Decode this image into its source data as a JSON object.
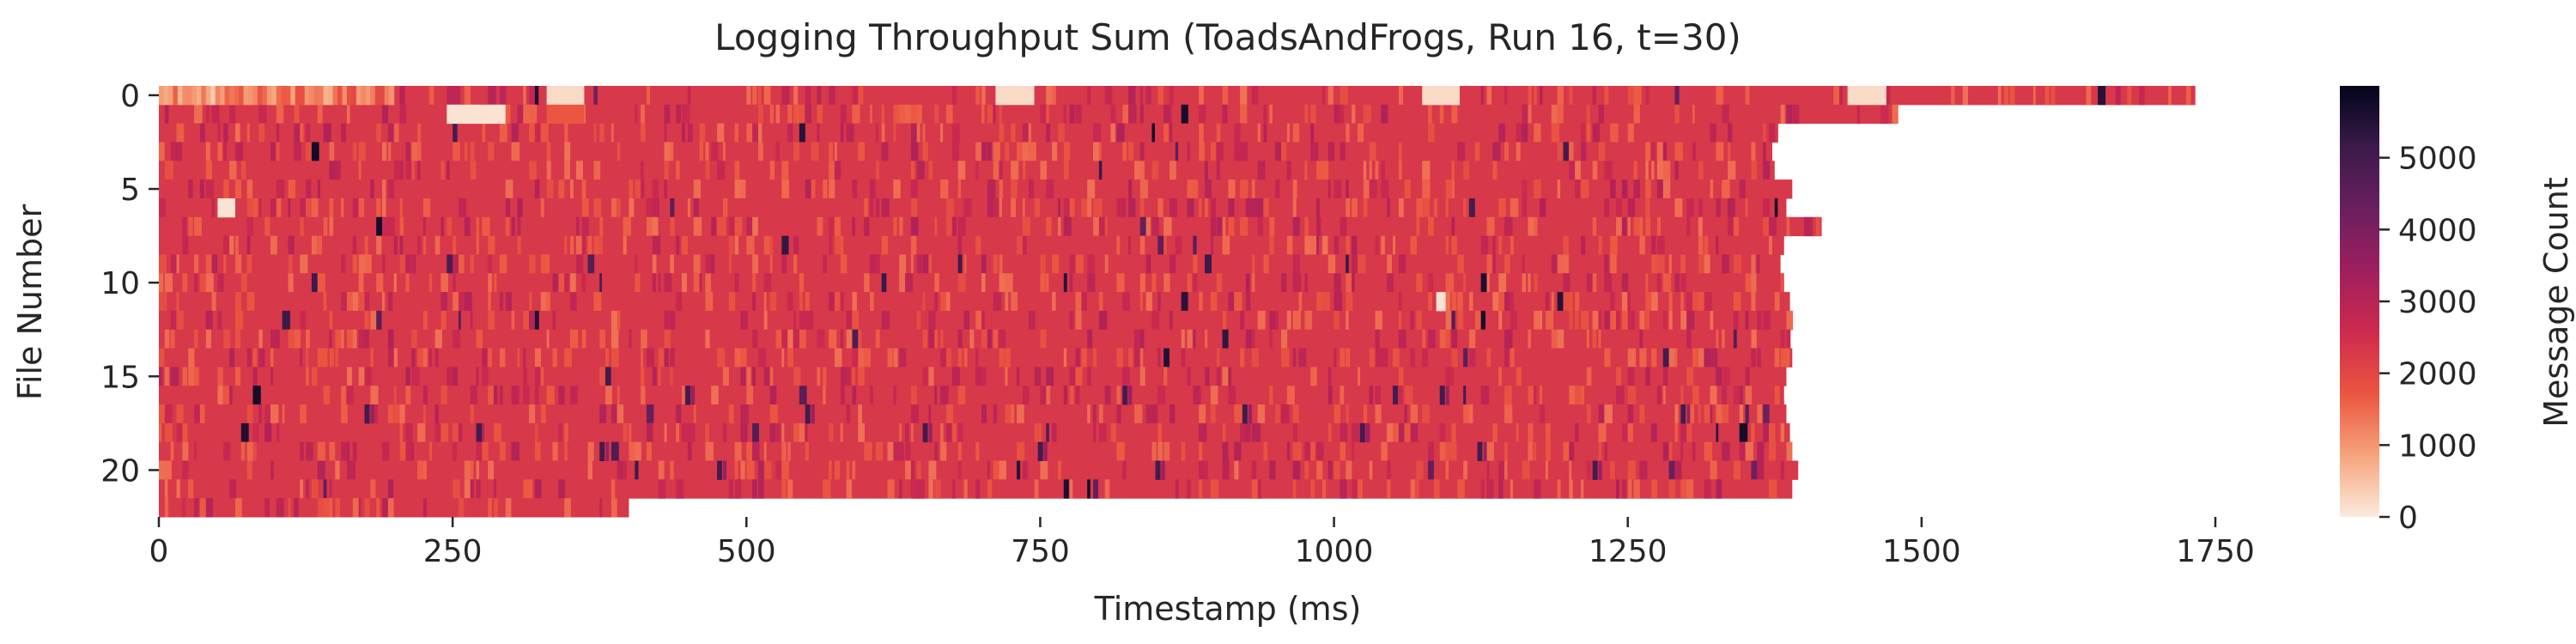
{
  "chart_data": {
    "type": "heatmap",
    "title": "Logging Throughput Sum (ToadsAndFrogs, Run 16, t=30)",
    "xlabel": "Timestamp (ms)",
    "ylabel": "File Number",
    "colorbar_label": "Message Count",
    "xlim": [
      0,
      1750
    ],
    "ylim": [
      0,
      22
    ],
    "x_ticks": [
      0,
      250,
      500,
      750,
      1000,
      1250,
      1500,
      1750
    ],
    "x_tick_labels": [
      "0",
      "250",
      "500",
      "750",
      "1000",
      "1250",
      "1500",
      "1750"
    ],
    "y_ticks": [
      0,
      5,
      10,
      15,
      20
    ],
    "y_tick_labels": [
      "0",
      "5",
      "10",
      "15",
      "20"
    ],
    "colorbar_range": [
      0,
      6000
    ],
    "colorbar_ticks": [
      0,
      1000,
      2000,
      3000,
      4000,
      5000
    ],
    "colorbar_tick_labels": [
      "0",
      "1000",
      "2000",
      "3000",
      "4000",
      "5000"
    ],
    "colorscale": [
      "#faebdd",
      "#f6a47b",
      "#eb5540",
      "#ce2a4e",
      "#9e1f5e",
      "#6b1f5e",
      "#3b1a4a",
      "#03051a"
    ],
    "typical_value": 2300,
    "row_end_ms": [
      1733,
      1478,
      1378,
      1373,
      1375,
      1390,
      1385,
      1415,
      1383,
      1380,
      1383,
      1388,
      1390,
      1388,
      1390,
      1385,
      1383,
      1385,
      1388,
      1390,
      1395,
      1390,
      400
    ],
    "low_patches": [
      {
        "row": 0,
        "start": 0,
        "end": 200,
        "value": 1000
      },
      {
        "row": 0,
        "start": 330,
        "end": 362,
        "value": 200
      },
      {
        "row": 0,
        "start": 712,
        "end": 745,
        "value": 200
      },
      {
        "row": 0,
        "start": 1075,
        "end": 1107,
        "value": 200
      },
      {
        "row": 0,
        "start": 1437,
        "end": 1470,
        "value": 200
      },
      {
        "row": 1,
        "start": 245,
        "end": 295,
        "value": 100
      },
      {
        "row": 1,
        "start": 330,
        "end": 362,
        "value": 1700
      },
      {
        "row": 6,
        "start": 50,
        "end": 65,
        "value": 100
      },
      {
        "row": 11,
        "start": 1087,
        "end": 1095,
        "value": 100
      }
    ],
    "high_spikes": [
      {
        "row": 16,
        "x": 448,
        "value": 5000
      },
      {
        "row": 16,
        "x": 820,
        "value": 5000
      },
      {
        "row": 16,
        "x": 1090,
        "value": 5000
      },
      {
        "row": 17,
        "x": 175,
        "value": 5000
      },
      {
        "row": 17,
        "x": 550,
        "value": 5000
      },
      {
        "row": 17,
        "x": 922,
        "value": 5000
      },
      {
        "row": 17,
        "x": 1295,
        "value": 5000
      },
      {
        "row": 18,
        "x": 650,
        "value": 5000
      },
      {
        "row": 18,
        "x": 1022,
        "value": 5000
      },
      {
        "row": 19,
        "x": 375,
        "value": 5000
      },
      {
        "row": 19,
        "x": 748,
        "value": 5000
      },
      {
        "row": 19,
        "x": 1122,
        "value": 5000
      },
      {
        "row": 20,
        "x": 475,
        "value": 5000
      },
      {
        "row": 20,
        "x": 848,
        "value": 5000
      },
      {
        "row": 20,
        "x": 1220,
        "value": 5000
      }
    ]
  }
}
